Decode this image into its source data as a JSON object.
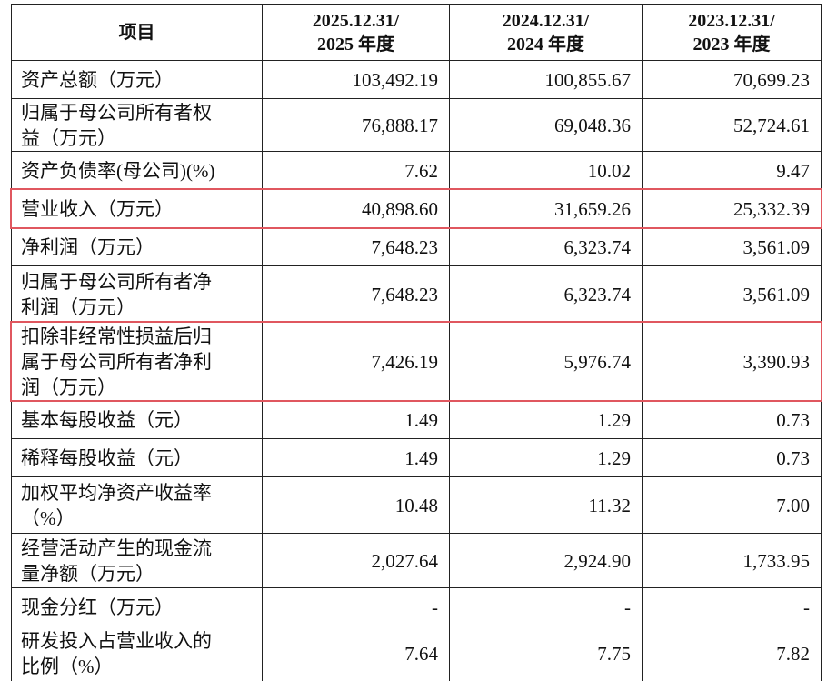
{
  "table": {
    "header": [
      [
        "项目"
      ],
      [
        "2025.12.31/",
        "2025 年度"
      ],
      [
        "2024.12.31/",
        "2024 年度"
      ],
      [
        "2023.12.31/",
        "2023 年度"
      ]
    ],
    "rows": [
      [
        "资产总额（万元）",
        "103,492.19",
        "100,855.67",
        "70,699.23"
      ],
      [
        "归属于母公司所有者权益（万元）",
        "76,888.17",
        "69,048.36",
        "52,724.61"
      ],
      [
        "资产负债率(母公司)(%)",
        "7.62",
        "10.02",
        "9.47"
      ],
      [
        "营业收入（万元）",
        "40,898.60",
        "31,659.26",
        "25,332.39"
      ],
      [
        "净利润（万元）",
        "7,648.23",
        "6,323.74",
        "3,561.09"
      ],
      [
        "归属于母公司所有者净利润（万元）",
        "7,648.23",
        "6,323.74",
        "3,561.09"
      ],
      [
        "扣除非经常性损益后归属于母公司所有者净利润（万元）",
        "7,426.19",
        "5,976.74",
        "3,390.93"
      ],
      [
        "基本每股收益（元）",
        "1.49",
        "1.29",
        "0.73"
      ],
      [
        "稀释每股收益（元）",
        "1.49",
        "1.29",
        "0.73"
      ],
      [
        "加权平均净资产收益率（%）",
        "10.48",
        "11.32",
        "7.00"
      ],
      [
        "经营活动产生的现金流量净额（万元）",
        "2,027.64",
        "2,924.90",
        "1,733.95"
      ],
      [
        "现金分红（万元）",
        "-",
        "-",
        "-"
      ],
      [
        "研发投入占营业收入的比例（%）",
        "7.64",
        "7.75",
        "7.82"
      ]
    ]
  }
}
